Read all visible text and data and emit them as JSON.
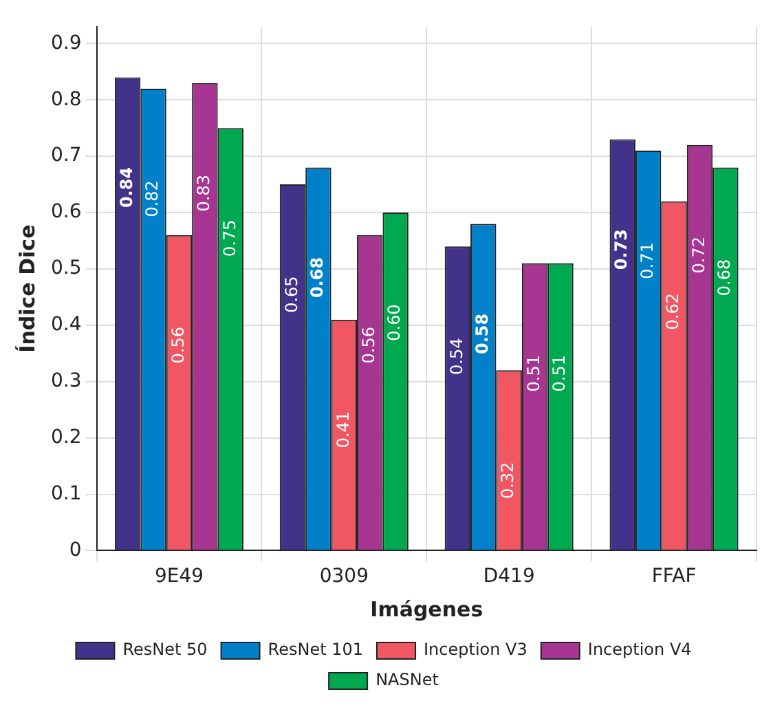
{
  "chart_data": {
    "type": "bar",
    "xlabel": "Imágenes",
    "ylabel": "Índice Dice",
    "categories": [
      "9E49",
      "0309",
      "D419",
      "FFAF"
    ],
    "series": [
      {
        "name": "ResNet 50",
        "color": "#433289",
        "values": [
          0.84,
          0.65,
          0.54,
          0.73
        ],
        "value_labels": [
          "0.84",
          "0.65",
          "0.54",
          "0.73"
        ]
      },
      {
        "name": "ResNet 101",
        "color": "#0080c8",
        "values": [
          0.82,
          0.68,
          0.58,
          0.71
        ],
        "value_labels": [
          "0.82",
          "0.68",
          "0.58",
          "0.71"
        ]
      },
      {
        "name": "Inception V3",
        "color": "#f05763",
        "values": [
          0.56,
          0.41,
          0.32,
          0.62
        ],
        "value_labels": [
          "0.56",
          "0.41",
          "0.32",
          "0.62"
        ]
      },
      {
        "name": "Inception V4",
        "color": "#a73592",
        "values": [
          0.83,
          0.56,
          0.51,
          0.72
        ],
        "value_labels": [
          "0.83",
          "0.56",
          "0.51",
          "0.72"
        ]
      },
      {
        "name": "NASNet",
        "color": "#00a84f",
        "values": [
          0.75,
          0.6,
          0.51,
          0.68
        ],
        "value_labels": [
          "0.75",
          "0.60",
          "0.51",
          "0.68"
        ]
      }
    ],
    "ylim": [
      0,
      0.93
    ],
    "yticks": [
      0,
      0.1,
      0.2,
      0.3,
      0.4,
      0.5,
      0.6,
      0.7,
      0.8,
      0.9
    ],
    "grid": true,
    "legend": "bottom"
  }
}
